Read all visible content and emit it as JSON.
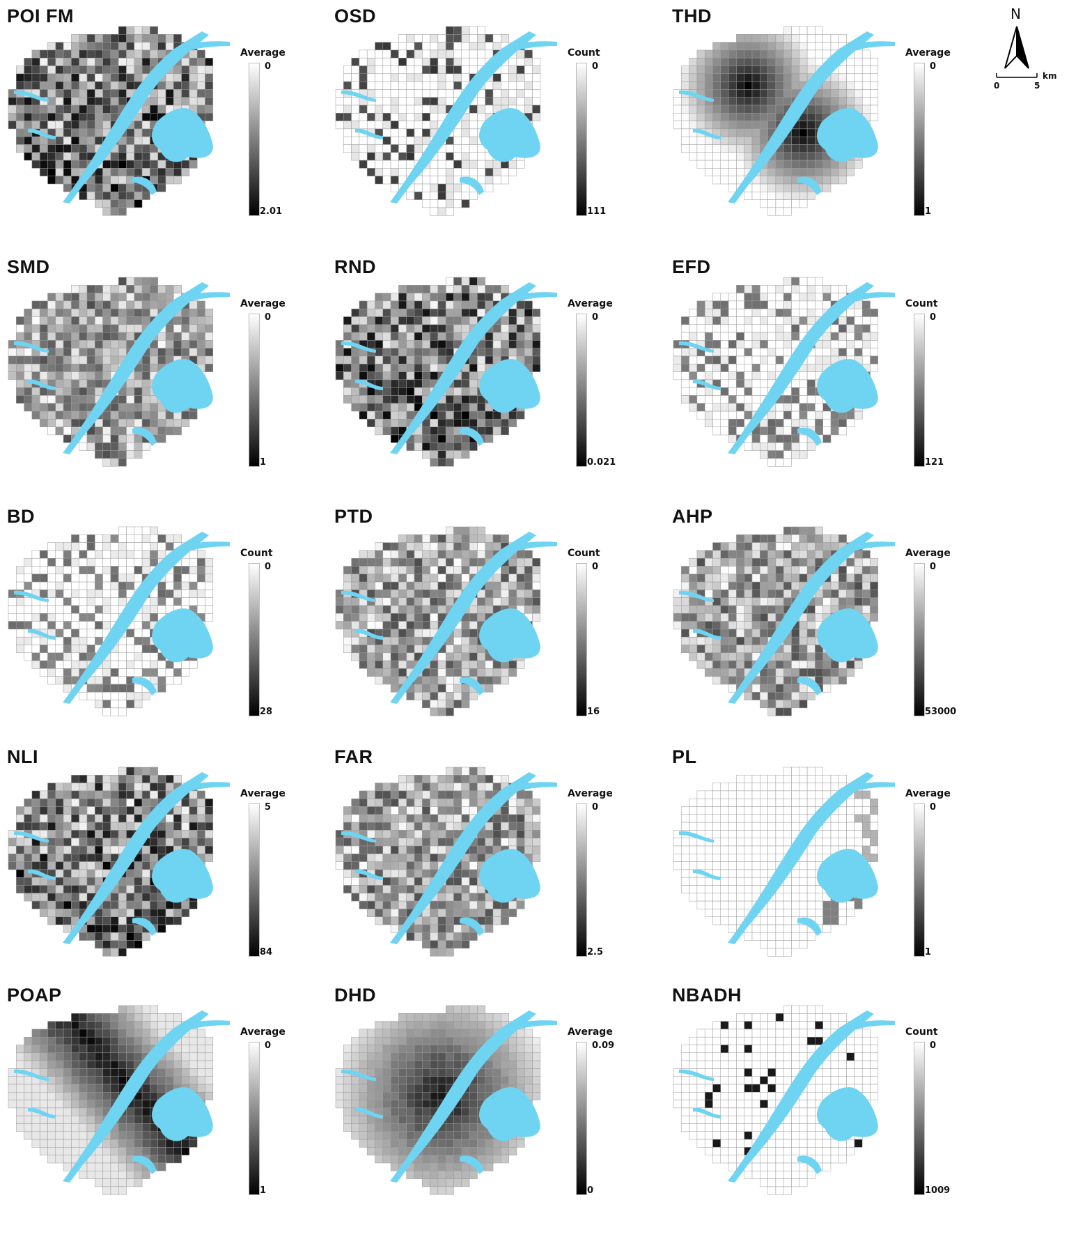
{
  "panels": [
    {
      "id": "poi-fm",
      "title": "POI FM",
      "legend_type": "Average",
      "legend_top": "0",
      "legend_bottom": "2.01",
      "pattern": "patchy-dark",
      "seed": 11
    },
    {
      "id": "osd",
      "title": "OSD",
      "legend_type": "Count",
      "legend_top": "0",
      "legend_bottom": "111",
      "pattern": "sparse",
      "seed": 23
    },
    {
      "id": "thd",
      "title": "THD",
      "legend_type": "Average",
      "legend_top": "0",
      "legend_bottom": "1",
      "pattern": "smooth-hotspot",
      "seed": 37
    },
    {
      "id": "smd",
      "title": "SMD",
      "legend_type": "Average",
      "legend_top": "0",
      "legend_bottom": "1",
      "pattern": "patchy-medium",
      "seed": 41
    },
    {
      "id": "rnd",
      "title": "RND",
      "legend_type": "Average",
      "legend_top": "0",
      "legend_bottom": "0.021",
      "pattern": "patchy-dark",
      "seed": 53
    },
    {
      "id": "efd",
      "title": "EFD",
      "legend_type": "Count",
      "legend_top": "0",
      "legend_bottom": "121",
      "pattern": "sparse-light",
      "seed": 67
    },
    {
      "id": "bd",
      "title": "BD",
      "legend_type": "Count",
      "legend_top": "0",
      "legend_bottom": "28",
      "pattern": "sparse-light",
      "seed": 71
    },
    {
      "id": "ptd",
      "title": "PTD",
      "legend_type": "Count",
      "legend_top": "0",
      "legend_bottom": "16",
      "pattern": "patchy-medium",
      "seed": 83
    },
    {
      "id": "ahp",
      "title": "AHP",
      "legend_type": "Average",
      "legend_top": "0",
      "legend_bottom": "53000",
      "pattern": "patchy-medium",
      "seed": 97
    },
    {
      "id": "nli",
      "title": "NLI",
      "legend_type": "Average",
      "legend_top": "5",
      "legend_bottom": "84",
      "pattern": "patchy-dark",
      "seed": 101
    },
    {
      "id": "far",
      "title": "FAR",
      "legend_type": "Average",
      "legend_top": "0",
      "legend_bottom": "2.5",
      "pattern": "patchy-medium",
      "seed": 113
    },
    {
      "id": "pl",
      "title": "PL",
      "legend_type": "Average",
      "legend_top": "0",
      "legend_bottom": "1",
      "pattern": "mostly-empty",
      "seed": 127
    },
    {
      "id": "poap",
      "title": "POAP",
      "legend_type": "Average",
      "legend_top": "0",
      "legend_bottom": "1",
      "pattern": "smooth-band",
      "seed": 131
    },
    {
      "id": "dhd",
      "title": "DHD",
      "legend_type": "Average",
      "legend_top": "0.09",
      "legend_bottom": "0",
      "pattern": "smooth-dark",
      "seed": 139
    },
    {
      "id": "nbadh",
      "title": "NBADH",
      "legend_type": "Count",
      "legend_top": "0",
      "legend_bottom": "1009",
      "pattern": "very-sparse",
      "seed": 149
    }
  ],
  "north_arrow": {
    "letter": "N",
    "scale_start": "0",
    "scale_end": "5",
    "scale_unit": "km"
  },
  "colors": {
    "water": "#6fd3f2",
    "grid_line": "#9a9a9a",
    "ramp_light": "#ffffff",
    "ramp_dark": "#000000"
  }
}
